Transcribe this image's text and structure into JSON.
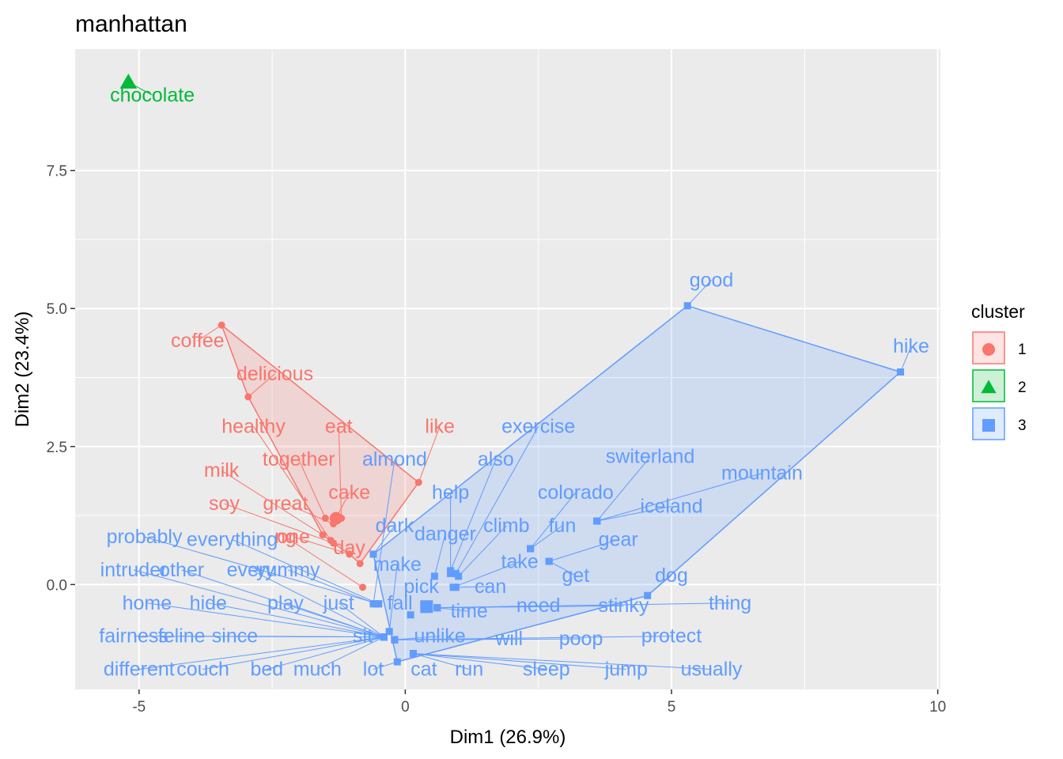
{
  "chart_data": {
    "type": "scatter",
    "title": "manhattan",
    "xlabel": "Dim1 (26.9%)",
    "ylabel": "Dim2 (23.4%)",
    "xlim": [
      -6.2,
      10.05
    ],
    "ylim": [
      -1.9,
      9.7
    ],
    "xticks": [
      -5,
      0,
      5,
      10
    ],
    "xtick_labels": [
      "-5",
      "0",
      "5",
      "10"
    ],
    "yticks": [
      0,
      2.5,
      5,
      7.5
    ],
    "ytick_labels": [
      "0.0",
      "2.5",
      "5.0",
      "7.5"
    ],
    "grid": true,
    "legend": {
      "title": "cluster",
      "position": "right",
      "entries": [
        "1",
        "2",
        "3"
      ]
    },
    "colors": {
      "1": "#F8766D",
      "2": "#00BA38",
      "3": "#619CFF"
    },
    "clusters": [
      {
        "id": "1",
        "shape": "circle",
        "hull": [
          "coffee",
          "delicious",
          "milk",
          "soy",
          "one",
          "day",
          "like"
        ]
      },
      {
        "id": "2",
        "shape": "triangle",
        "hull": [
          "chocolate"
        ]
      },
      {
        "id": "3",
        "shape": "square",
        "hull": [
          "good",
          "hike",
          "dog",
          "lot",
          "dark"
        ]
      }
    ],
    "centers": [
      {
        "cluster": "1",
        "x": -1.3,
        "y": 1.2
      },
      {
        "cluster": "2",
        "x": -5.2,
        "y": 9.1
      },
      {
        "cluster": "3",
        "x": 0.4,
        "y": -0.4
      }
    ],
    "points": [
      {
        "label": "chocolate",
        "cluster": "2",
        "x": -5.2,
        "y": 9.1,
        "lx": -4.75,
        "ly": 8.75
      },
      {
        "label": "coffee",
        "cluster": "1",
        "x": -3.45,
        "y": 4.7,
        "lx": -3.9,
        "ly": 4.3
      },
      {
        "label": "delicious",
        "cluster": "1",
        "x": -2.95,
        "y": 3.4,
        "lx": -2.45,
        "ly": 3.7
      },
      {
        "label": "healthy",
        "cluster": "1",
        "x": -1.4,
        "y": 0.8,
        "lx": -2.85,
        "ly": 2.75
      },
      {
        "label": "eat",
        "cluster": "1",
        "x": -1.2,
        "y": 1.2,
        "lx": -1.25,
        "ly": 2.75
      },
      {
        "label": "like",
        "cluster": "1",
        "x": 0.25,
        "y": 1.85,
        "lx": 0.65,
        "ly": 2.75
      },
      {
        "label": "together",
        "cluster": "1",
        "x": -1.5,
        "y": 1.2,
        "lx": -2.0,
        "ly": 2.15
      },
      {
        "label": "milk",
        "cluster": "1",
        "x": -1.55,
        "y": 0.9,
        "lx": -3.45,
        "ly": 1.95
      },
      {
        "label": "cake",
        "cluster": "1",
        "x": -1.3,
        "y": 1.2,
        "lx": -1.05,
        "ly": 1.55
      },
      {
        "label": "great",
        "cluster": "1",
        "x": -1.35,
        "y": 1.1,
        "lx": -2.25,
        "ly": 1.35
      },
      {
        "label": "soy",
        "cluster": "1",
        "x": -1.35,
        "y": 0.75,
        "lx": -3.4,
        "ly": 1.35
      },
      {
        "label": "one",
        "cluster": "1",
        "x": -1.05,
        "y": 0.55,
        "lx": -2.1,
        "ly": 0.75
      },
      {
        "label": "day",
        "cluster": "1",
        "x": -0.85,
        "y": 0.38,
        "lx": -1.05,
        "ly": 0.55
      },
      {
        "label": "ng",
        "cluster": "1",
        "x": -0.8,
        "y": -0.05,
        "lx": -2.25,
        "ly": 0.75
      },
      {
        "label": "good",
        "cluster": "3",
        "x": 5.3,
        "y": 5.05,
        "lx": 5.75,
        "ly": 5.4
      },
      {
        "label": "hike",
        "cluster": "3",
        "x": 9.3,
        "y": 3.85,
        "lx": 9.5,
        "ly": 4.2
      },
      {
        "label": "exercise",
        "cluster": "3",
        "x": 0.95,
        "y": 0.2,
        "lx": 2.5,
        "ly": 2.75
      },
      {
        "label": "almond",
        "cluster": "3",
        "x": -0.6,
        "y": -0.35,
        "lx": -0.2,
        "ly": 2.15
      },
      {
        "label": "also",
        "cluster": "3",
        "x": 0.85,
        "y": 0.25,
        "lx": 1.7,
        "ly": 2.15
      },
      {
        "label": "switerland",
        "cluster": "3",
        "x": 3.6,
        "y": 1.15,
        "lx": 4.6,
        "ly": 2.2
      },
      {
        "label": "mountain",
        "cluster": "3",
        "x": 3.6,
        "y": 1.15,
        "lx": 6.7,
        "ly": 1.9
      },
      {
        "label": "help",
        "cluster": "3",
        "x": 0.85,
        "y": 0.2,
        "lx": 0.85,
        "ly": 1.55
      },
      {
        "label": "colorado",
        "cluster": "3",
        "x": 2.35,
        "y": 0.65,
        "lx": 3.2,
        "ly": 1.55
      },
      {
        "label": "iceland",
        "cluster": "3",
        "x": 3.6,
        "y": 1.15,
        "lx": 5.0,
        "ly": 1.3
      },
      {
        "label": "dark",
        "cluster": "3",
        "x": -0.6,
        "y": 0.55,
        "lx": -0.2,
        "ly": 0.95
      },
      {
        "label": "climb",
        "cluster": "3",
        "x": 1.0,
        "y": 0.15,
        "lx": 1.9,
        "ly": 0.95
      },
      {
        "label": "fun",
        "cluster": "3",
        "x": 2.35,
        "y": 0.65,
        "lx": 2.95,
        "ly": 0.95
      },
      {
        "label": "danger",
        "cluster": "3",
        "x": 0.55,
        "y": 0.15,
        "lx": 0.75,
        "ly": 0.8
      },
      {
        "label": "probably",
        "cluster": "3",
        "x": -0.5,
        "y": -0.35,
        "lx": -4.9,
        "ly": 0.75
      },
      {
        "label": "everything",
        "cluster": "3",
        "x": -0.5,
        "y": -0.35,
        "lx": -3.25,
        "ly": 0.7
      },
      {
        "label": "gear",
        "cluster": "3",
        "x": 2.7,
        "y": 0.42,
        "lx": 4.0,
        "ly": 0.7
      },
      {
        "label": "take",
        "cluster": "3",
        "x": 0.9,
        "y": -0.05,
        "lx": 2.15,
        "ly": 0.3
      },
      {
        "label": "make",
        "cluster": "3",
        "x": -0.3,
        "y": -0.85,
        "lx": -0.15,
        "ly": 0.25
      },
      {
        "label": "intruder",
        "cluster": "3",
        "x": -0.4,
        "y": -0.95,
        "lx": -5.1,
        "ly": 0.15
      },
      {
        "label": "other",
        "cluster": "3",
        "x": -0.4,
        "y": -0.95,
        "lx": -4.2,
        "ly": 0.15
      },
      {
        "label": "every",
        "cluster": "3",
        "x": -0.4,
        "y": -0.95,
        "lx": -2.9,
        "ly": 0.15
      },
      {
        "label": "yummy",
        "cluster": "3",
        "x": -0.55,
        "y": -0.35,
        "lx": -2.2,
        "ly": 0.15
      },
      {
        "label": "get",
        "cluster": "3",
        "x": 2.7,
        "y": 0.42,
        "lx": 3.2,
        "ly": 0.05
      },
      {
        "label": "dog",
        "cluster": "3",
        "x": 4.55,
        "y": -0.2,
        "lx": 5.0,
        "ly": 0.05
      },
      {
        "label": "pick",
        "cluster": "3",
        "x": 0.35,
        "y": -0.45,
        "lx": 0.3,
        "ly": -0.15
      },
      {
        "label": "can",
        "cluster": "3",
        "x": 0.95,
        "y": -0.05,
        "lx": 1.6,
        "ly": -0.15
      },
      {
        "label": "home",
        "cluster": "3",
        "x": -0.4,
        "y": -0.95,
        "lx": -4.85,
        "ly": -0.45
      },
      {
        "label": "hide",
        "cluster": "3",
        "x": -0.4,
        "y": -0.95,
        "lx": -3.7,
        "ly": -0.45
      },
      {
        "label": "play",
        "cluster": "3",
        "x": -0.4,
        "y": -0.95,
        "lx": -2.25,
        "ly": -0.45
      },
      {
        "label": "just",
        "cluster": "3",
        "x": -0.4,
        "y": -0.95,
        "lx": -1.25,
        "ly": -0.45
      },
      {
        "label": "fall",
        "cluster": "3",
        "x": 0.1,
        "y": -0.55,
        "lx": -0.1,
        "ly": -0.45
      },
      {
        "label": "time",
        "cluster": "3",
        "x": 0.6,
        "y": -0.42,
        "lx": 1.2,
        "ly": -0.6
      },
      {
        "label": "need",
        "cluster": "3",
        "x": 0.6,
        "y": -0.42,
        "lx": 2.5,
        "ly": -0.5
      },
      {
        "label": "stinky",
        "cluster": "3",
        "x": 0.6,
        "y": -0.42,
        "lx": 4.1,
        "ly": -0.5
      },
      {
        "label": "thing",
        "cluster": "3",
        "x": 0.6,
        "y": -0.42,
        "lx": 6.1,
        "ly": -0.45
      },
      {
        "label": "fairness",
        "cluster": "3",
        "x": -0.4,
        "y": -0.95,
        "lx": -5.1,
        "ly": -1.05
      },
      {
        "label": "feline",
        "cluster": "3",
        "x": -0.4,
        "y": -0.95,
        "lx": -4.2,
        "ly": -1.05
      },
      {
        "label": "since",
        "cluster": "3",
        "x": -0.4,
        "y": -0.95,
        "lx": -3.2,
        "ly": -1.05
      },
      {
        "label": "sit",
        "cluster": "3",
        "x": -0.4,
        "y": -0.95,
        "lx": -0.8,
        "ly": -1.05
      },
      {
        "label": "unlike",
        "cluster": "3",
        "x": -0.2,
        "y": -1.0,
        "lx": 0.65,
        "ly": -1.05
      },
      {
        "label": "will",
        "cluster": "3",
        "x": -0.2,
        "y": -1.0,
        "lx": 1.95,
        "ly": -1.1
      },
      {
        "label": "poop",
        "cluster": "3",
        "x": -0.2,
        "y": -1.0,
        "lx": 3.3,
        "ly": -1.1
      },
      {
        "label": "protect",
        "cluster": "3",
        "x": -0.2,
        "y": -1.0,
        "lx": 5.0,
        "ly": -1.05
      },
      {
        "label": "different",
        "cluster": "3",
        "x": -0.4,
        "y": -0.95,
        "lx": -5.0,
        "ly": -1.65
      },
      {
        "label": "couch",
        "cluster": "3",
        "x": -0.4,
        "y": -0.95,
        "lx": -3.8,
        "ly": -1.65
      },
      {
        "label": "bed",
        "cluster": "3",
        "x": -0.4,
        "y": -0.95,
        "lx": -2.6,
        "ly": -1.65
      },
      {
        "label": "much",
        "cluster": "3",
        "x": -0.4,
        "y": -0.95,
        "lx": -1.65,
        "ly": -1.65
      },
      {
        "label": "lot",
        "cluster": "3",
        "x": -0.15,
        "y": -1.4,
        "lx": -0.6,
        "ly": -1.65
      },
      {
        "label": "cat",
        "cluster": "3",
        "x": 0.15,
        "y": -1.25,
        "lx": 0.35,
        "ly": -1.65
      },
      {
        "label": "run",
        "cluster": "3",
        "x": 0.15,
        "y": -1.25,
        "lx": 1.2,
        "ly": -1.65
      },
      {
        "label": "sleep",
        "cluster": "3",
        "x": 0.15,
        "y": -1.25,
        "lx": 2.65,
        "ly": -1.65
      },
      {
        "label": "jump",
        "cluster": "3",
        "x": 0.15,
        "y": -1.25,
        "lx": 4.15,
        "ly": -1.65
      },
      {
        "label": "usually",
        "cluster": "3",
        "x": 0.15,
        "y": -1.25,
        "lx": 5.75,
        "ly": -1.65
      }
    ]
  }
}
